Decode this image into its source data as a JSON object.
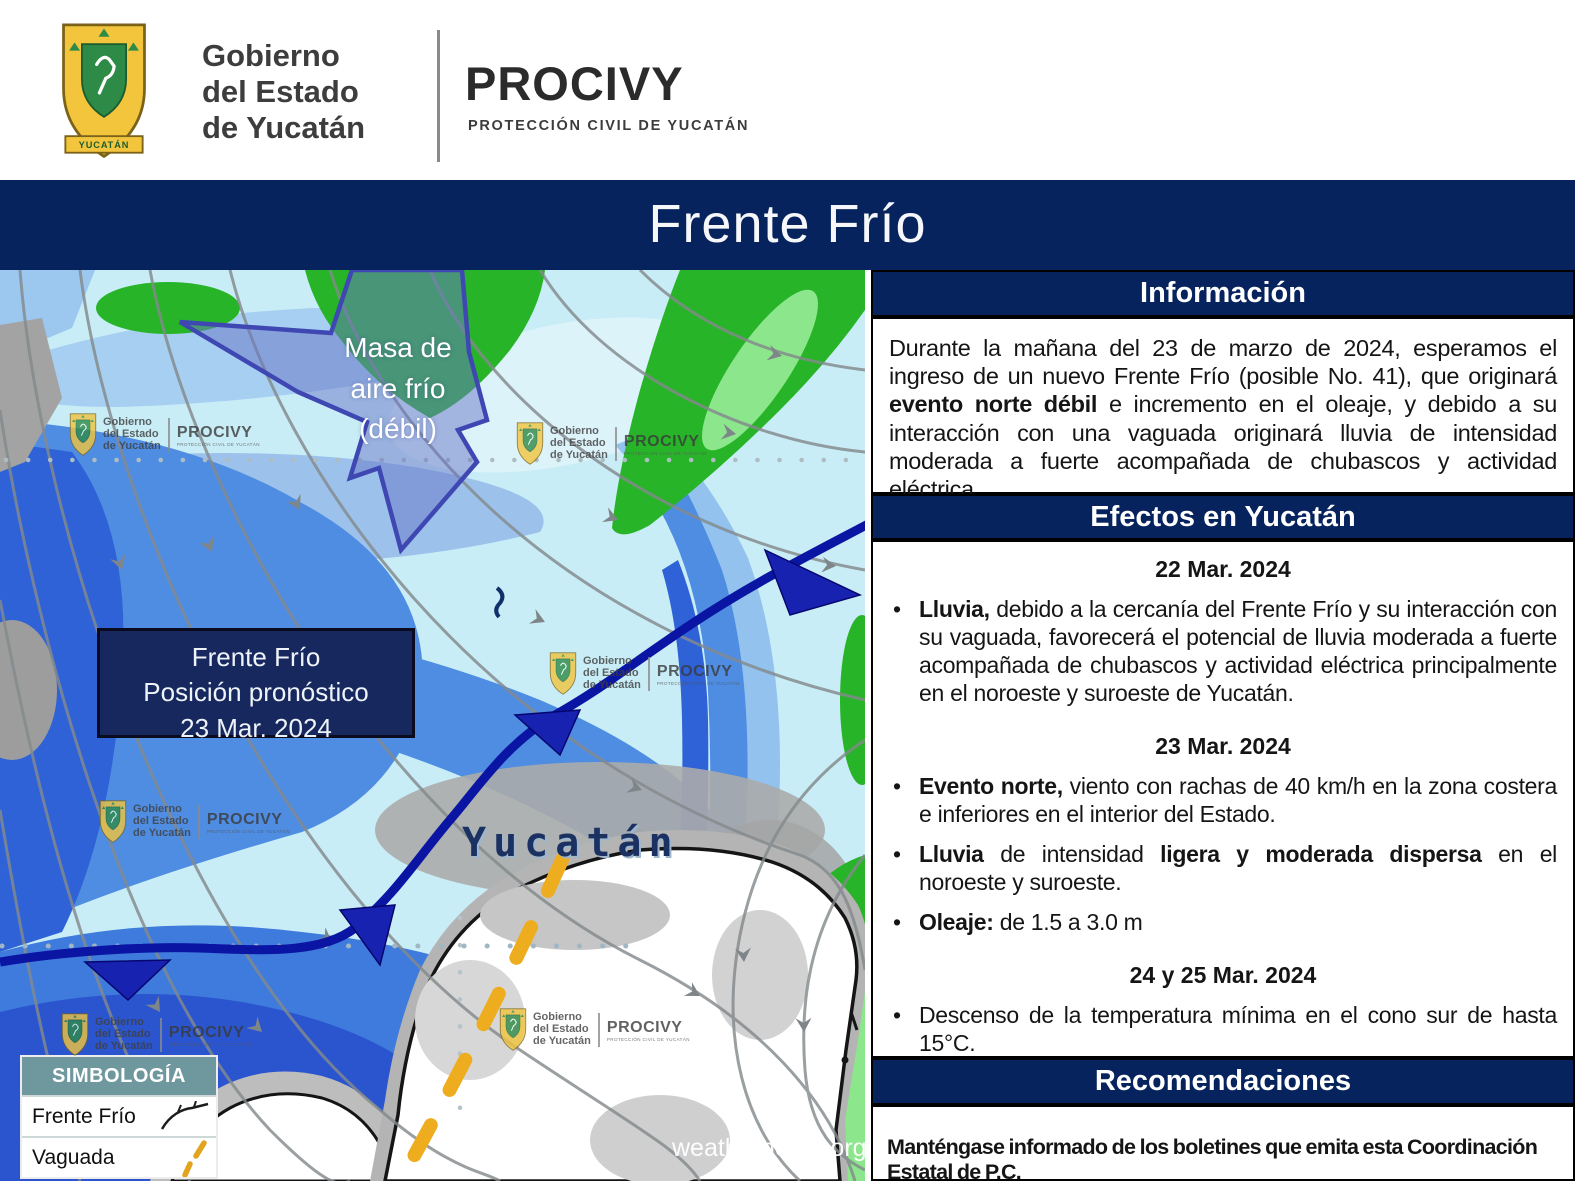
{
  "header": {
    "gov": {
      "line1": "Gobierno",
      "line2": "del Estado",
      "line3": "de Yucatán",
      "banner": "YUCATÁN"
    },
    "procivy": {
      "name": "PROCIVY",
      "subtitle": "PROTECCIÓN CIVIL DE YUCATÁN"
    }
  },
  "title_bar": {
    "title": "Frente Frío"
  },
  "map": {
    "air_mass": {
      "lines": [
        "Masa de",
        "aire frío",
        "(débil)"
      ]
    },
    "front_label": {
      "lines": [
        "Frente Frío",
        "Posición pronóstico",
        "23  Mar. 2024"
      ]
    },
    "region_label": "Yucatán",
    "credit": "weathernerds.org/",
    "legend": {
      "title": "SIMBOLOGÍA",
      "items": [
        {
          "label": "Frente Frío",
          "symbol": "cold-front-curve"
        },
        {
          "label": "Vaguada",
          "symbol": "dashed-trough-line"
        }
      ]
    }
  },
  "panel": {
    "info": {
      "title": "Información",
      "runs": [
        {
          "t": "Durante la mañana del 23 de marzo de 2024, esperamos el ingreso de un nuevo Frente Frío (posible No. 41), que originará "
        },
        {
          "t": "evento norte débil",
          "b": true
        },
        {
          "t": " e incremento en el oleaje, y debido a su interacción con una vaguada originará lluvia de intensidad moderada  a fuerte acompañada de chubascos y actividad eléctrica."
        }
      ]
    },
    "effects": {
      "title": "Efectos en Yucatán",
      "sections": [
        {
          "date": "22 Mar. 2024",
          "bullets": [
            [
              {
                "t": "Lluvia,",
                "b": true
              },
              {
                "t": " debido a la cercanía del Frente Frío y su interacción con su vaguada, favorecerá el potencial de lluvia moderada a fuerte acompañada de chubascos y actividad eléctrica principalmente en el noroeste y suroeste de Yucatán."
              }
            ]
          ]
        },
        {
          "date": "23 Mar. 2024",
          "bullets": [
            [
              {
                "t": "Evento norte,",
                "b": true
              },
              {
                "t": " viento con rachas de 40 km/h en la zona costera e inferiores en el interior del Estado."
              }
            ],
            [
              {
                "t": "Lluvia",
                "b": true
              },
              {
                "t": " de intensidad "
              },
              {
                "t": "ligera y moderada dispersa",
                "b": true
              },
              {
                "t": " en el noroeste y suroeste."
              }
            ],
            [
              {
                "t": "Oleaje:",
                "b": true
              },
              {
                "t": " de 1.5 a 3.0 m"
              }
            ]
          ]
        },
        {
          "date": "24 y 25 Mar. 2024",
          "bullets": [
            [
              {
                "t": "Descenso de la temperatura mínima  en el cono sur  de hasta 15°C."
              }
            ]
          ]
        }
      ]
    },
    "recommendations": {
      "title": "Recomendaciones",
      "text": "Manténgase informado de los boletines que emita esta Coordinación Estatal de P.C."
    }
  },
  "colors": {
    "navy": "#06235e",
    "panel_border": "#000000",
    "legend_header": "#6e989d",
    "front_line": "#0b15a4",
    "front_triangle": "#1822b0",
    "vaguada_yellow": "#eead1e",
    "air_mass_arrow": "#6876c6",
    "map_green": "#28b428",
    "map_green_light": "#8ce78c",
    "map_blue_deep": "#2e62d6",
    "map_blue_mid": "#4f8de2",
    "map_blue_light": "#a6cff1",
    "map_cyan": "#c9edf6",
    "land_gray": "#ababab",
    "streamline_gray": "#848a8d"
  }
}
